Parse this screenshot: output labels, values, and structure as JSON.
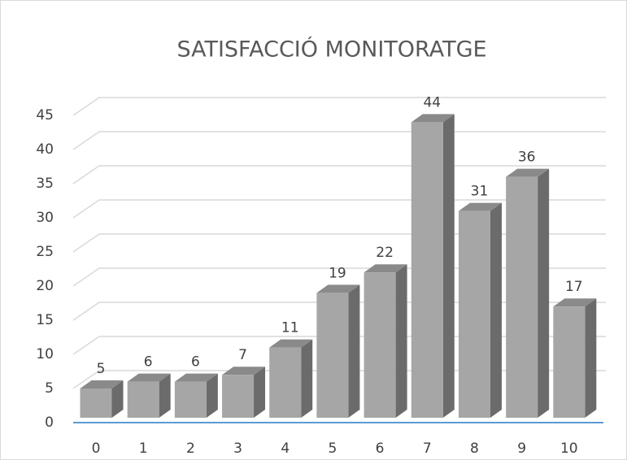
{
  "chart_data": {
    "type": "bar",
    "title": "SATISFACCIÓ MONITORATGE",
    "categories": [
      "0",
      "1",
      "2",
      "3",
      "4",
      "5",
      "6",
      "7",
      "8",
      "9",
      "10"
    ],
    "values": [
      5,
      6,
      6,
      7,
      11,
      19,
      22,
      44,
      31,
      36,
      17
    ],
    "color": "#a6a6a6",
    "ylim": [
      0,
      45
    ],
    "yticks": [
      0,
      5,
      10,
      15,
      20,
      25,
      30,
      35,
      40,
      45
    ],
    "grid": true
  }
}
